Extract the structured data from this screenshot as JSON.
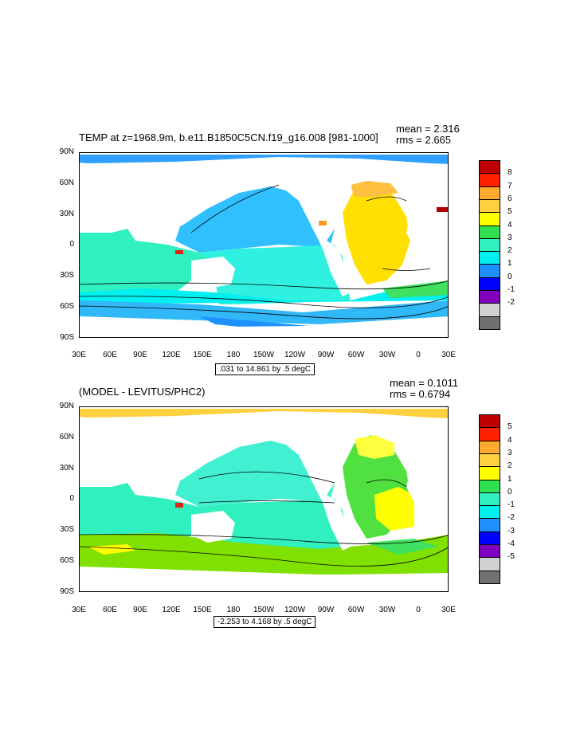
{
  "panels": [
    {
      "title": "TEMP at z=1968.9m, b.e11.B1850C5CN.f19_g16.008 [981-1000]",
      "mean": "mean = 2.316",
      "rms": "rms = 2.665",
      "info": ".031 to 14.861 by .5 degC",
      "colorbar_labels": [
        "8",
        "7",
        "6",
        "5",
        "4",
        "3",
        "2",
        "1",
        "0",
        "-1",
        "-2"
      ],
      "colorbar_colors": [
        "#b00000",
        "#e02010",
        "#ff5a00",
        "#ff9a20",
        "#ffd040",
        "#ffff00",
        "#80e000",
        "#30e050",
        "#30f0c0",
        "#00f0f0",
        "#30c0ff",
        "#1e90ff",
        "#0030ff",
        "#5000c0",
        "#b000d0",
        "#e040e0",
        "#d0d0d0",
        "#707070"
      ]
    },
    {
      "title": "(MODEL - LEVITUS/PHC2)",
      "mean": "mean = 0.1011",
      "rms": "rms = 0.6794",
      "info": "-2.253 to 4.168 by .5 degC",
      "colorbar_labels": [
        "5",
        "4",
        "3",
        "2",
        "1",
        "0",
        "-1",
        "-2",
        "-3",
        "-4",
        "-5"
      ],
      "colorbar_colors": [
        "#b00000",
        "#e02010",
        "#ff5a00",
        "#ff9a20",
        "#ffd040",
        "#ffff00",
        "#80e000",
        "#30e050",
        "#30f0c0",
        "#00f0f0",
        "#30c0ff",
        "#1e90ff",
        "#0030ff",
        "#5000c0",
        "#b000d0",
        "#e040e0",
        "#d0d0d0",
        "#707070"
      ]
    }
  ],
  "axes": {
    "lat_labels": [
      "90N",
      "60N",
      "30N",
      "0",
      "30S",
      "60S",
      "90S"
    ],
    "lon_labels": [
      "30E",
      "60E",
      "90E",
      "120E",
      "150E",
      "180",
      "150W",
      "120W",
      "90W",
      "60W",
      "30W",
      "0",
      "30E"
    ]
  }
}
